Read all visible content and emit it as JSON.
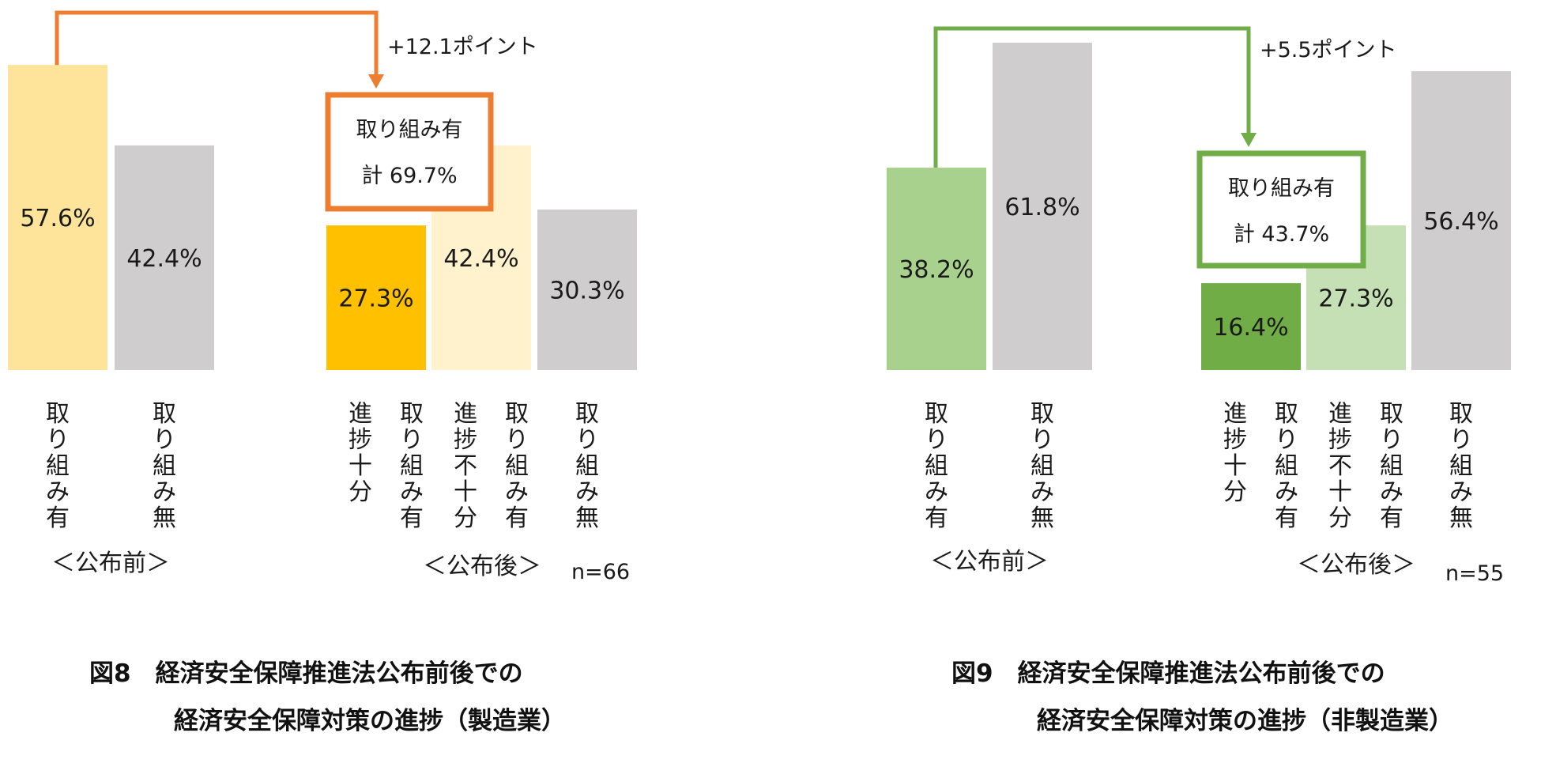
{
  "chart_data": [
    {
      "type": "bar",
      "title": "図8　経済安全保障推進法公布前後での",
      "subtitle": "経済安全保障対策の進捗（製造業）",
      "n_label": "n=66",
      "groups": [
        "＜公布前＞",
        "＜公布後＞"
      ],
      "bars": [
        {
          "group": 0,
          "label": "取り組み有",
          "value": 57.6,
          "value_label": "57.6%",
          "color": "#FDE49A"
        },
        {
          "group": 0,
          "label": "取り組み無",
          "value": 42.4,
          "value_label": "42.4%",
          "color": "#CFCDCE"
        },
        {
          "group": 1,
          "label": "進捗十分",
          "label2": "取り組み有",
          "value": 27.3,
          "value_label": "27.3%",
          "color": "#FFC000"
        },
        {
          "group": 1,
          "label": "進捗不十分",
          "label2": "取り組み有",
          "value": 42.4,
          "value_label": "42.4%",
          "color": "#FFF2CD"
        },
        {
          "group": 1,
          "label": "取り組み無",
          "value": 30.3,
          "value_label": "30.3%",
          "color": "#CFCDCE"
        }
      ],
      "box_label_1": "取り組み有",
      "box_label_2": "計 69.7%",
      "box_total": 69.7,
      "change_label": "+12.1ポイント",
      "accent_color": "#ED7D31"
    },
    {
      "type": "bar",
      "title": "図9　経済安全保障推進法公布前後での",
      "subtitle": "経済安全保障対策の進捗（非製造業）",
      "n_label": "n=55",
      "groups": [
        "＜公布前＞",
        "＜公布後＞"
      ],
      "bars": [
        {
          "group": 0,
          "label": "取り組み有",
          "value": 38.2,
          "value_label": "38.2%",
          "color": "#A9D18E"
        },
        {
          "group": 0,
          "label": "取り組み無",
          "value": 61.8,
          "value_label": "61.8%",
          "color": "#CFCDCE"
        },
        {
          "group": 1,
          "label": "進捗十分",
          "label2": "取り組み有",
          "value": 16.4,
          "value_label": "16.4%",
          "color": "#70AD47"
        },
        {
          "group": 1,
          "label": "進捗不十分",
          "label2": "取り組み有",
          "value": 27.3,
          "value_label": "27.3%",
          "color": "#C5E0B4"
        },
        {
          "group": 1,
          "label": "取り組み無",
          "value": 56.4,
          "value_label": "56.4%",
          "color": "#CFCDCE"
        }
      ],
      "box_label_1": "取り組み有",
      "box_label_2": "計 43.7%",
      "box_total": 43.7,
      "change_label": "+5.5ポイント",
      "accent_color": "#70AD47"
    }
  ]
}
